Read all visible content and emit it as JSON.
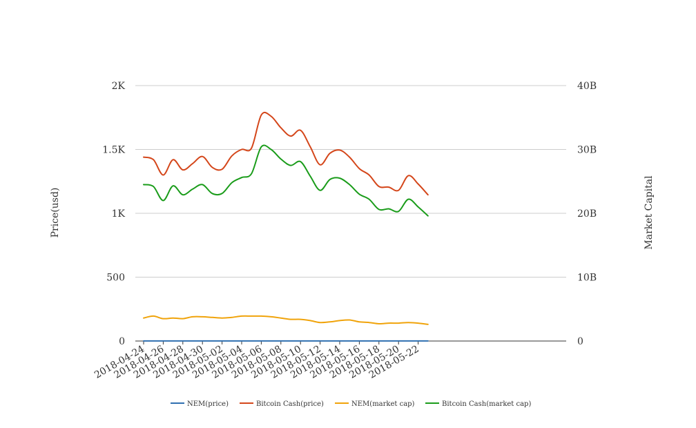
{
  "chart_data": {
    "type": "line",
    "title": "",
    "ylabel": "Price(usd)",
    "y2label": "Market Capital",
    "ylim": [
      0,
      2000
    ],
    "y2lim": [
      0,
      40000000000
    ],
    "yticks": [
      "0",
      "500",
      "1K",
      "1.5K",
      "2K"
    ],
    "y2ticks": [
      "0",
      "10B",
      "20B",
      "30B",
      "40B"
    ],
    "grid": true,
    "legend_position": "bottom",
    "x": [
      "2018-04-24",
      "2018-04-25",
      "2018-04-26",
      "2018-04-27",
      "2018-04-28",
      "2018-04-29",
      "2018-04-30",
      "2018-05-01",
      "2018-05-02",
      "2018-05-03",
      "2018-05-04",
      "2018-05-05",
      "2018-05-06",
      "2018-05-07",
      "2018-05-08",
      "2018-05-09",
      "2018-05-10",
      "2018-05-11",
      "2018-05-12",
      "2018-05-13",
      "2018-05-14",
      "2018-05-15",
      "2018-05-16",
      "2018-05-17",
      "2018-05-18",
      "2018-05-19",
      "2018-05-20",
      "2018-05-21",
      "2018-05-22",
      "2018-05-23"
    ],
    "xticks": [
      "2018-04-24",
      "2018-04-26",
      "2018-04-28",
      "2018-04-30",
      "2018-05-02",
      "2018-05-04",
      "2018-05-06",
      "2018-05-08",
      "2018-05-10",
      "2018-05-12",
      "2018-05-14",
      "2018-05-16",
      "2018-05-18",
      "2018-05-20",
      "2018-05-22"
    ],
    "series": [
      {
        "name": "NEM(price)",
        "axis": "left",
        "color": "#2f6fb0",
        "values": [
          0.42,
          0.44,
          0.4,
          0.39,
          0.4,
          0.41,
          0.42,
          0.41,
          0.4,
          0.41,
          0.42,
          0.43,
          0.42,
          0.41,
          0.39,
          0.38,
          0.37,
          0.35,
          0.33,
          0.33,
          0.35,
          0.36,
          0.34,
          0.33,
          0.31,
          0.31,
          0.31,
          0.31,
          0.3,
          0.29
        ]
      },
      {
        "name": "Bitcoin Cash(price)",
        "axis": "left",
        "color": "#d4461a",
        "values": [
          1440,
          1420,
          1300,
          1420,
          1340,
          1390,
          1445,
          1360,
          1345,
          1450,
          1500,
          1510,
          1770,
          1760,
          1670,
          1605,
          1650,
          1520,
          1380,
          1470,
          1495,
          1440,
          1350,
          1300,
          1210,
          1205,
          1180,
          1295,
          1230,
          1145
        ]
      },
      {
        "name": "NEM(market cap)",
        "axis": "right",
        "color": "#f0a30a",
        "values": [
          3600000000,
          3900000000,
          3500000000,
          3600000000,
          3500000000,
          3800000000,
          3800000000,
          3700000000,
          3600000000,
          3700000000,
          3900000000,
          3900000000,
          3900000000,
          3800000000,
          3600000000,
          3400000000,
          3400000000,
          3200000000,
          2900000000,
          3000000000,
          3200000000,
          3300000000,
          3000000000,
          2900000000,
          2700000000,
          2800000000,
          2800000000,
          2900000000,
          2800000000,
          2600000000
        ]
      },
      {
        "name": "Bitcoin Cash(market cap)",
        "axis": "right",
        "color": "#1a9c1a",
        "values": [
          24500000000,
          24200000000,
          22000000000,
          24300000000,
          22900000000,
          23800000000,
          24500000000,
          23100000000,
          23100000000,
          24800000000,
          25600000000,
          26200000000,
          30400000000,
          30000000000,
          28500000000,
          27500000000,
          28100000000,
          25800000000,
          23600000000,
          25300000000,
          25500000000,
          24500000000,
          23000000000,
          22200000000,
          20600000000,
          20700000000,
          20300000000,
          22200000000,
          21000000000,
          19600000000
        ]
      }
    ]
  }
}
